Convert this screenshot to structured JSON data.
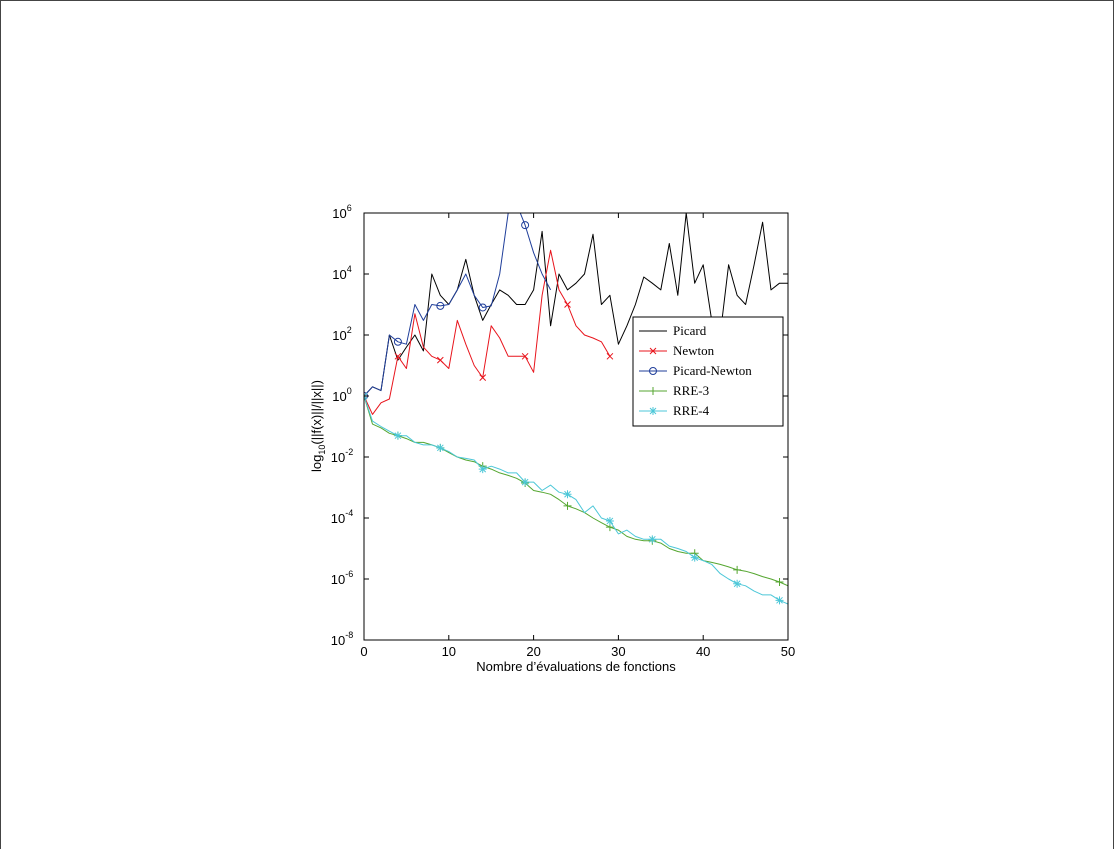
{
  "chart_data": {
    "type": "line",
    "xlabel": "Nombre d’évaluations de fonctions",
    "ylabel_base": "log",
    "ylabel_sub": "10",
    "ylabel_rest": "(||f(x)||/||x||)",
    "y_scale": "log",
    "xlim": [
      0,
      50
    ],
    "ylim": [
      1e-08,
      1000000.0
    ],
    "x_ticks": [
      "0",
      "10",
      "20",
      "30",
      "40",
      "50"
    ],
    "y_tick_exponents": [
      "-8",
      "-6",
      "-4",
      "-2",
      "0",
      "2",
      "4",
      "6"
    ],
    "y_tick_base": "10",
    "legend_position": "right",
    "series": [
      {
        "name": "Picard",
        "color": "#000000",
        "marker": "none",
        "x": [
          0,
          1,
          2,
          3,
          4,
          5,
          6,
          7,
          8,
          9,
          10,
          11,
          12,
          13,
          14,
          15,
          16,
          17,
          18,
          19,
          20,
          21,
          22,
          23,
          24,
          25,
          26,
          27,
          28,
          29,
          30,
          31,
          32,
          33,
          34,
          35,
          36,
          37,
          38,
          39,
          40,
          41,
          42,
          43,
          44,
          45,
          46,
          47,
          48,
          49,
          50
        ],
        "y": [
          1,
          2,
          1.5,
          100,
          15,
          40,
          100,
          30,
          10000,
          2000,
          1000,
          3000,
          30000,
          2000,
          300,
          1000,
          3000,
          2000,
          1000,
          1000,
          3000,
          250000,
          200,
          10000,
          3000,
          5000,
          10000,
          200000,
          1000,
          2000,
          50,
          200,
          1000,
          8000,
          5000,
          3000,
          100000,
          2000,
          1000000,
          5000,
          20000,
          300,
          100,
          20000,
          2000,
          1000,
          20000,
          500000,
          3000,
          5000,
          5000
        ]
      },
      {
        "name": "Newton",
        "color": "#e8141c",
        "marker": "x",
        "x": [
          0,
          1,
          2,
          3,
          4,
          5,
          6,
          7,
          8,
          9,
          10,
          11,
          12,
          13,
          14,
          15,
          16,
          17,
          18,
          19,
          20,
          21,
          22,
          23,
          24,
          25,
          26,
          27,
          28,
          29
        ],
        "y": [
          1,
          0.25,
          0.6,
          0.8,
          20,
          8,
          500,
          40,
          20,
          15,
          8,
          300,
          50,
          10,
          4,
          200,
          80,
          20,
          20,
          20,
          6,
          2000,
          60000,
          3000,
          1000,
          200,
          100,
          80,
          60,
          20
        ],
        "marker_x": [
          4,
          9,
          14,
          19,
          24,
          29
        ]
      },
      {
        "name": "Picard-Newton",
        "color": "#1f3e9a",
        "marker": "o",
        "x": [
          0,
          1,
          2,
          3,
          4,
          5,
          6,
          7,
          8,
          9,
          10,
          11,
          12,
          13,
          14,
          15,
          16,
          17,
          18,
          19,
          20,
          21,
          22
        ],
        "y": [
          1,
          2,
          1.5,
          100,
          60,
          50,
          1000,
          300,
          1000,
          900,
          1000,
          3000,
          10000,
          2000,
          800,
          900,
          10000,
          1000000,
          2000000,
          400000,
          50000,
          10000,
          3000
        ],
        "marker_x": [
          0,
          4,
          9,
          14,
          19
        ]
      },
      {
        "name": "RRE-3",
        "color": "#55a630",
        "marker": "+",
        "x": [
          0,
          1,
          2,
          3,
          4,
          5,
          6,
          7,
          8,
          9,
          10,
          11,
          12,
          13,
          14,
          15,
          16,
          17,
          18,
          19,
          20,
          21,
          22,
          23,
          24,
          25,
          26,
          27,
          28,
          29,
          30,
          31,
          32,
          33,
          34,
          35,
          36,
          37,
          38,
          39,
          40,
          41,
          42,
          43,
          44,
          45,
          46,
          47,
          48,
          49,
          50
        ],
        "y": [
          1,
          0.12,
          0.09,
          0.06,
          0.05,
          0.04,
          0.03,
          0.03,
          0.025,
          0.02,
          0.014,
          0.01,
          0.008,
          0.007,
          0.005,
          0.004,
          0.003,
          0.0025,
          0.002,
          0.0014,
          0.0008,
          0.0007,
          0.0006,
          0.0004,
          0.00025,
          0.0002,
          0.00015,
          0.0001,
          7e-05,
          5e-05,
          4e-05,
          2.5e-05,
          2e-05,
          1.8e-05,
          1.8e-05,
          1.5e-05,
          1e-05,
          8e-06,
          7e-06,
          7e-06,
          4e-06,
          3.5e-06,
          3e-06,
          2.5e-06,
          2e-06,
          1.8e-06,
          1.5e-06,
          1.2e-06,
          1e-06,
          8e-07,
          6e-07
        ],
        "marker_x": [
          4,
          9,
          14,
          19,
          24,
          29,
          34,
          39,
          44,
          49
        ]
      },
      {
        "name": "RRE-4",
        "color": "#4cc7d8",
        "marker": "*",
        "x": [
          0,
          1,
          2,
          3,
          4,
          5,
          6,
          7,
          8,
          9,
          10,
          11,
          12,
          13,
          14,
          15,
          16,
          17,
          18,
          19,
          20,
          21,
          22,
          23,
          24,
          25,
          26,
          27,
          28,
          29,
          30,
          31,
          32,
          33,
          34,
          35,
          36,
          37,
          38,
          39,
          40,
          41,
          42,
          43,
          44,
          45,
          46,
          47,
          48,
          49,
          50
        ],
        "y": [
          1,
          0.15,
          0.1,
          0.07,
          0.05,
          0.05,
          0.03,
          0.025,
          0.025,
          0.02,
          0.015,
          0.01,
          0.009,
          0.008,
          0.004,
          0.005,
          0.004,
          0.003,
          0.003,
          0.0015,
          0.0015,
          0.0008,
          0.0012,
          0.0007,
          0.0006,
          0.0004,
          0.00015,
          0.00025,
          0.0001,
          8e-05,
          3e-05,
          4e-05,
          2.5e-05,
          2e-05,
          2e-05,
          2e-05,
          1.2e-05,
          1e-05,
          8e-06,
          5e-06,
          4e-06,
          3e-06,
          1.5e-06,
          1e-06,
          7e-07,
          6e-07,
          4e-07,
          3e-07,
          3e-07,
          2e-07,
          1.5e-07
        ],
        "marker_x": [
          0,
          4,
          9,
          14,
          19,
          24,
          29,
          34,
          39,
          44,
          49
        ]
      }
    ]
  }
}
